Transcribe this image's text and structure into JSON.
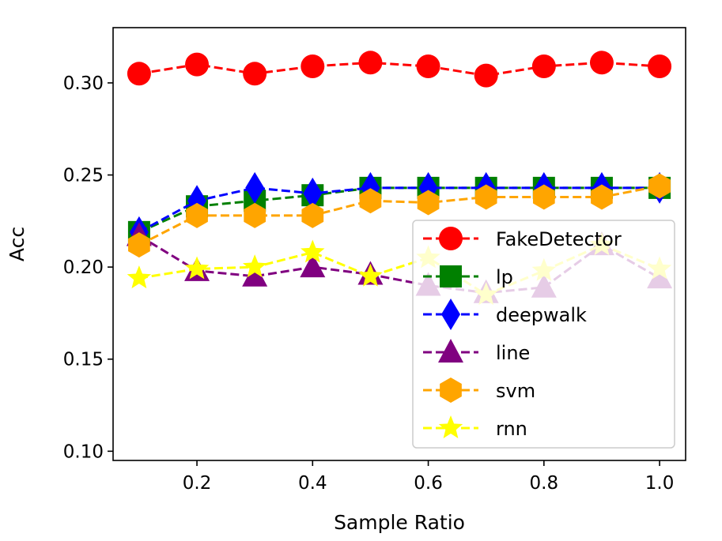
{
  "chart_data": {
    "type": "line",
    "title": "",
    "xlabel": "Sample Ratio",
    "ylabel": "Acc",
    "xlim": [
      0.055,
      1.045
    ],
    "ylim": [
      0.095,
      0.33
    ],
    "x": [
      0.1,
      0.2,
      0.3,
      0.4,
      0.5,
      0.6,
      0.7,
      0.8,
      0.9,
      1.0
    ],
    "xticks": [
      0.2,
      0.4,
      0.6,
      0.8,
      1.0
    ],
    "xtick_labels": [
      "0.2",
      "0.4",
      "0.6",
      "0.8",
      "1.0"
    ],
    "yticks": [
      0.1,
      0.15,
      0.2,
      0.25,
      0.3
    ],
    "ytick_labels": [
      "0.10",
      "0.15",
      "0.20",
      "0.25",
      "0.30"
    ],
    "grid": false,
    "legend_position": "lower-right",
    "series": [
      {
        "name": "FakeDetector",
        "color": "#ff0000",
        "marker": "circle",
        "values": [
          0.305,
          0.31,
          0.305,
          0.309,
          0.311,
          0.309,
          0.304,
          0.309,
          0.311,
          0.309
        ]
      },
      {
        "name": "lp",
        "color": "#008000",
        "marker": "square",
        "values": [
          0.219,
          0.233,
          0.236,
          0.239,
          0.243,
          0.243,
          0.243,
          0.243,
          0.243,
          0.243
        ]
      },
      {
        "name": "deepwalk",
        "color": "#0000ff",
        "marker": "diamond",
        "values": [
          0.219,
          0.236,
          0.243,
          0.24,
          0.243,
          0.243,
          0.243,
          0.243,
          0.243,
          0.243
        ]
      },
      {
        "name": "line",
        "color": "#800080",
        "marker": "triangle",
        "values": [
          0.217,
          0.198,
          0.195,
          0.2,
          0.196,
          0.19,
          0.186,
          0.189,
          0.212,
          0.194
        ]
      },
      {
        "name": "svm",
        "color": "#ffa500",
        "marker": "hexagon",
        "values": [
          0.212,
          0.228,
          0.228,
          0.228,
          0.236,
          0.235,
          0.238,
          0.238,
          0.238,
          0.244
        ]
      },
      {
        "name": "rnn",
        "color": "#ffff00",
        "marker": "star",
        "values": [
          0.194,
          0.199,
          0.2,
          0.208,
          0.195,
          0.205,
          0.185,
          0.198,
          0.212,
          0.199
        ]
      }
    ]
  }
}
